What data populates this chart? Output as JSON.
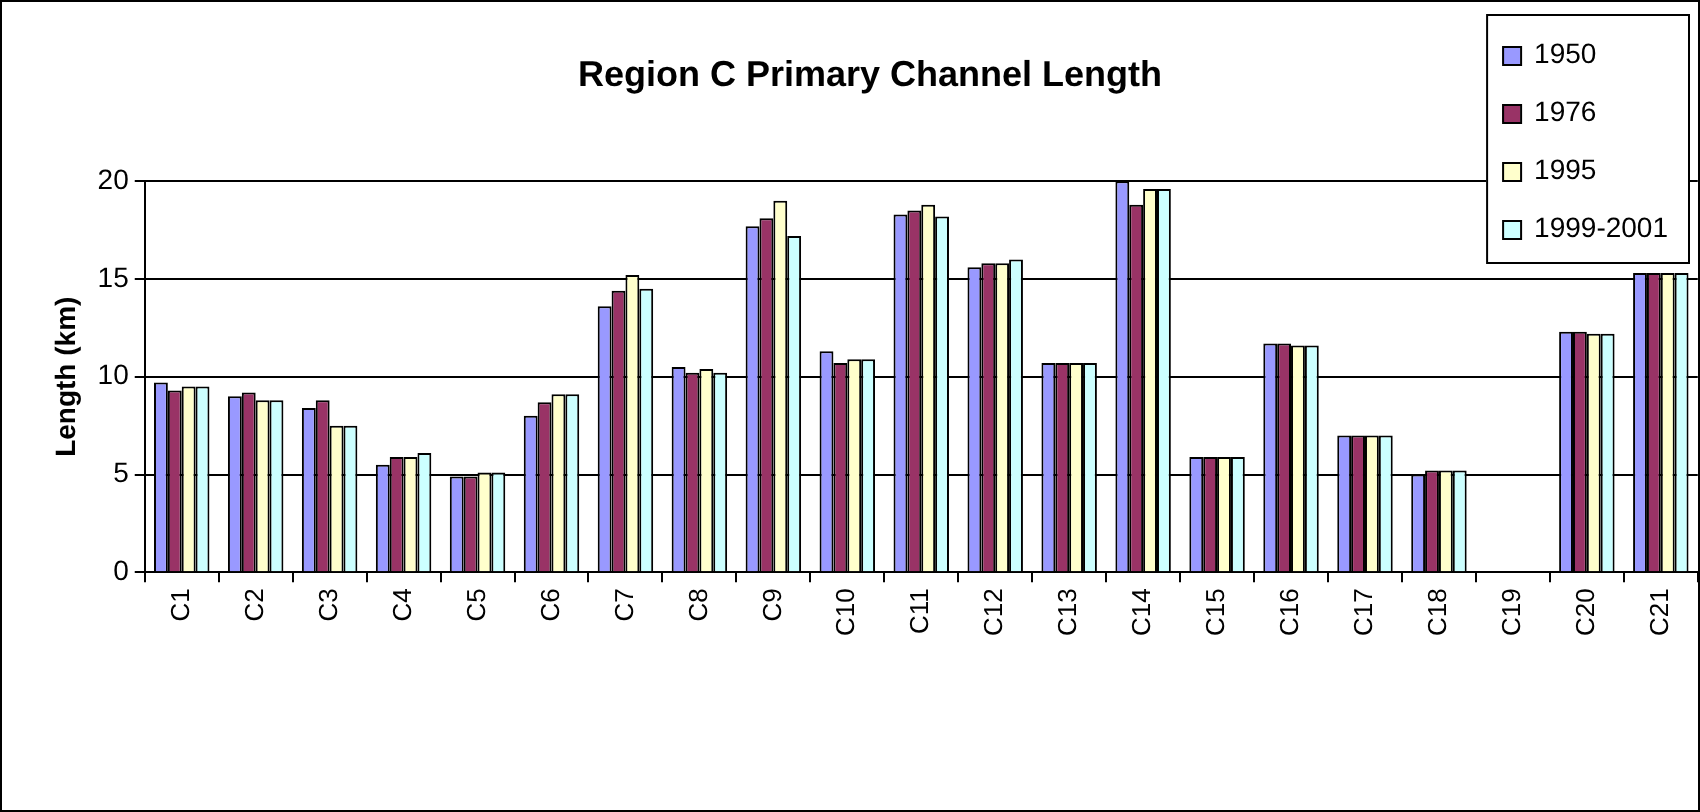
{
  "chart_data": {
    "type": "bar",
    "title": "Region C Primary Channel Length",
    "ylabel": "Length (km)",
    "categories": [
      "C1",
      "C2",
      "C3",
      "C4",
      "C5",
      "C6",
      "C7",
      "C8",
      "C9",
      "C10",
      "C11",
      "C12",
      "C13",
      "C14",
      "C15",
      "C16",
      "C17",
      "C18",
      "C19",
      "C20",
      "C21"
    ],
    "series": [
      {
        "name": "1950",
        "color": "#9999ff",
        "values": [
          9.7,
          9.0,
          8.4,
          5.5,
          4.9,
          8.0,
          13.6,
          10.5,
          17.7,
          11.3,
          18.3,
          15.6,
          10.7,
          20,
          5.9,
          11.7,
          7.0,
          5.0,
          null,
          12.3,
          15.3
        ]
      },
      {
        "name": "1976",
        "color": "#993366",
        "values": [
          9.3,
          9.2,
          8.8,
          5.9,
          4.9,
          8.7,
          14.4,
          10.2,
          18.1,
          10.7,
          18.5,
          15.8,
          10.7,
          18.8,
          5.9,
          11.7,
          7.0,
          5.2,
          null,
          12.3,
          15.3
        ]
      },
      {
        "name": "1995",
        "color": "#ffffcc",
        "values": [
          9.5,
          8.8,
          7.5,
          5.9,
          5.1,
          9.1,
          15.2,
          10.4,
          19.0,
          10.9,
          18.8,
          15.8,
          10.7,
          19.6,
          5.9,
          11.6,
          7.0,
          5.2,
          null,
          12.2,
          15.3
        ]
      },
      {
        "name": "1999-2001",
        "color": "#ccffff",
        "values": [
          9.5,
          8.8,
          7.5,
          6.1,
          5.1,
          9.1,
          14.5,
          10.2,
          17.2,
          10.9,
          18.2,
          16.0,
          10.7,
          19.6,
          5.9,
          11.6,
          7.0,
          5.2,
          null,
          12.2,
          15.3
        ]
      }
    ],
    "ylim": [
      0,
      20
    ],
    "yticks": [
      0,
      5,
      10,
      15,
      20
    ],
    "grid": "y",
    "legend": "top right"
  }
}
